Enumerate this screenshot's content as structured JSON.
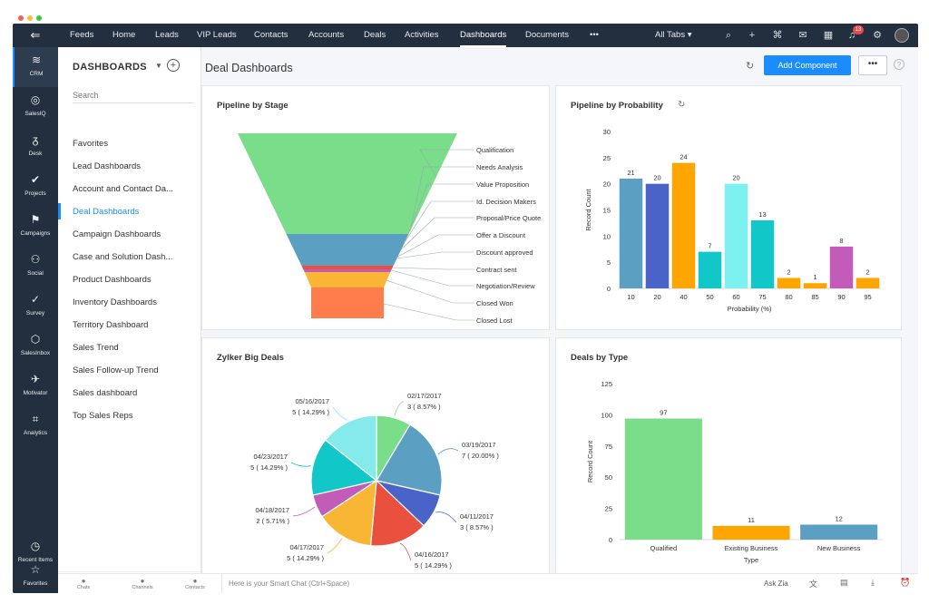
{
  "topbar": {
    "tabs": [
      "Feeds",
      "Home",
      "Leads",
      "VIP Leads",
      "Contacts",
      "Accounts",
      "Deals",
      "Activities",
      "Dashboards",
      "Documents",
      "•••"
    ],
    "active": "Dashboards",
    "all_tabs": "All Tabs ▾",
    "badge": "13"
  },
  "leftnav": [
    {
      "label": "CRM",
      "icon": "crm-icon"
    },
    {
      "label": "SalesIQ",
      "icon": "salesiq-icon"
    },
    {
      "label": "Desk",
      "icon": "desk-icon"
    },
    {
      "label": "Projects",
      "icon": "projects-icon"
    },
    {
      "label": "Campaigns",
      "icon": "campaigns-icon"
    },
    {
      "label": "Social",
      "icon": "social-icon"
    },
    {
      "label": "Survey",
      "icon": "survey-icon"
    },
    {
      "label": "SalesInbox",
      "icon": "salesinbox-icon"
    },
    {
      "label": "Motivator",
      "icon": "motivator-icon"
    },
    {
      "label": "Analytics",
      "icon": "analytics-icon"
    },
    {
      "label": "Recent Items",
      "icon": "recent-items-icon"
    },
    {
      "label": "Favorites",
      "icon": "favorites-icon"
    }
  ],
  "sidebar": {
    "title": "DASHBOARDS",
    "search_placeholder": "Search",
    "items": [
      "Favorites",
      "Lead Dashboards",
      "Account and Contact Da...",
      "Deal Dashboards",
      "Campaign Dashboards",
      "Case and Solution Dash...",
      "Product Dashboards",
      "Inventory Dashboards",
      "Territory Dashboard",
      "Sales Trend",
      "Sales Follow-up Trend",
      "Sales dashboard",
      "Top Sales Reps"
    ],
    "active": "Deal Dashboards"
  },
  "main": {
    "title": "Deal Dashboards",
    "add_component": "Add Component",
    "more": "•••"
  },
  "bottom": {
    "chats": "Chats",
    "channels": "Channels",
    "contacts": "Contacts",
    "smart_chat": "Here is your Smart Chat (Ctrl+Space)",
    "ask_zia": "Ask Zia"
  },
  "colors": {
    "accent": "#1a8cff",
    "nav": "#232f3e",
    "green": "#79dd8a",
    "orange": "#ffa500",
    "blue": "#5b9fc2"
  },
  "chart_data": [
    {
      "type": "funnel",
      "title": "Pipeline by Stage",
      "stages": [
        "Qualification",
        "Needs Analysis",
        "Value Proposition",
        "Id. Decision Makers",
        "Proposal/Price Quote",
        "Offer a Discount",
        "Discount approved",
        "Contract sent",
        "Negotiation/Review",
        "Closed Won",
        "Closed Lost"
      ],
      "values": [
        100,
        0,
        0,
        0,
        0,
        0,
        36,
        3,
        2,
        9,
        17
      ]
    },
    {
      "type": "bar",
      "title": "Pipeline by Probability",
      "xlabel": "Probability (%)",
      "ylabel": "Record Count",
      "ylim": [
        0,
        30
      ],
      "yticks": [
        0,
        5,
        10,
        15,
        20,
        25,
        30
      ],
      "categories": [
        "10",
        "20",
        "40",
        "50",
        "60",
        "75",
        "80",
        "85",
        "90",
        "95"
      ],
      "values": [
        21,
        20,
        24,
        7,
        20,
        13,
        2,
        1,
        8,
        2
      ],
      "colors": [
        "#5b9fc2",
        "#4a63c9",
        "#ffa500",
        "#12c7c7",
        "#7df0f0",
        "#12c7c7",
        "#ffa500",
        "#ffa500",
        "#c35bb8",
        "#ffa500"
      ]
    },
    {
      "type": "pie",
      "title": "Zylker Big Deals",
      "slices": [
        {
          "label": "02/17/2017",
          "detail": "3 ( 8.57% )",
          "value": 8.57,
          "color": "#79dd8a"
        },
        {
          "label": "03/19/2017",
          "detail": "7 ( 20.00% )",
          "value": 20.0,
          "color": "#5b9fc2"
        },
        {
          "label": "04/11/2017",
          "detail": "3 ( 8.57% )",
          "value": 8.57,
          "color": "#4a63c9"
        },
        {
          "label": "04/16/2017",
          "detail": "5 ( 14.29% )",
          "value": 14.29,
          "color": "#e9503d"
        },
        {
          "label": "04/17/2017",
          "detail": "5 ( 14.29% )",
          "value": 14.29,
          "color": "#f8b634"
        },
        {
          "label": "04/18/2017",
          "detail": "2 ( 5.71% )",
          "value": 5.71,
          "color": "#c35bb8"
        },
        {
          "label": "04/23/2017",
          "detail": "5 ( 14.29% )",
          "value": 14.29,
          "color": "#12c7c7"
        },
        {
          "label": "05/16/2017",
          "detail": "5 ( 14.29% )",
          "value": 14.29,
          "color": "#86eaea"
        }
      ]
    },
    {
      "type": "bar",
      "title": "Deals by Type",
      "xlabel": "Type",
      "ylabel": "Record Count",
      "ylim": [
        0,
        125
      ],
      "yticks": [
        0,
        25,
        50,
        75,
        100,
        125
      ],
      "categories": [
        "Qualified",
        "Existing Business",
        "New Business"
      ],
      "values": [
        97,
        11,
        12
      ],
      "colors": [
        "#79dd8a",
        "#ffa500",
        "#5b9fc2"
      ]
    }
  ]
}
